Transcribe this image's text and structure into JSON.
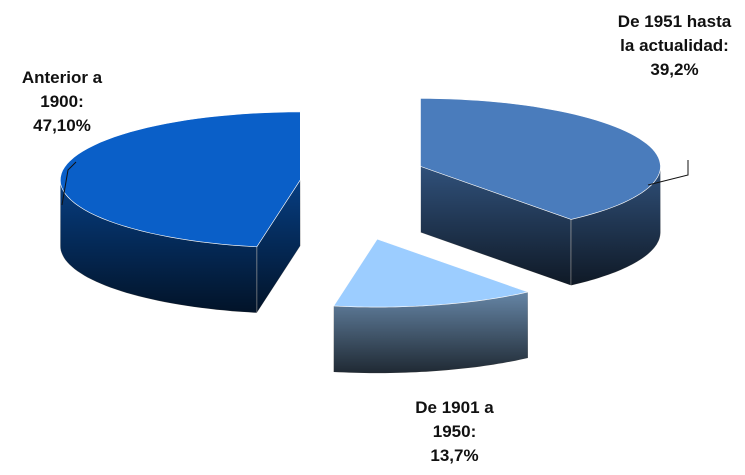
{
  "chart_data": {
    "type": "pie3d",
    "categories": [
      "Anterior a 1900:",
      "De 1901 a 1950:",
      "De 1951 hasta la actualidad:"
    ],
    "values": [
      47.1,
      13.7,
      39.2
    ],
    "value_labels": [
      "47,10%",
      "13,7%",
      "39,2%"
    ],
    "colors": [
      "#0a5fc8",
      "#9ccdff",
      "#4a7cbc"
    ]
  }
}
